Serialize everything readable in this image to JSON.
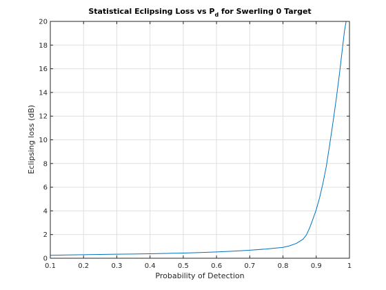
{
  "chart_data": {
    "type": "line",
    "title": "Statistical Eclipsing Loss vs P",
    "title_subscript": "d",
    "title_suffix": " for Swerling 0 Target",
    "xlabel": "Probability of Detection",
    "ylabel": "Eclipsing loss (dB)",
    "xlim": [
      0.1,
      1
    ],
    "ylim": [
      0,
      20
    ],
    "x_ticks": [
      0.1,
      0.2,
      0.3,
      0.4,
      0.5,
      0.6,
      0.7,
      0.8,
      0.9,
      1
    ],
    "x_tick_labels": [
      "0.1",
      "0.2",
      "0.3",
      "0.4",
      "0.5",
      "0.6",
      "0.7",
      "0.8",
      "0.9",
      "1"
    ],
    "y_ticks": [
      0,
      2,
      4,
      6,
      8,
      10,
      12,
      14,
      16,
      18,
      20
    ],
    "y_tick_labels": [
      "0",
      "2",
      "4",
      "6",
      "8",
      "10",
      "12",
      "14",
      "16",
      "18",
      "20"
    ],
    "grid": true,
    "legend": "none",
    "series": [
      {
        "color": "#0072bd",
        "x": [
          0.1,
          0.15,
          0.2,
          0.25,
          0.3,
          0.35,
          0.4,
          0.45,
          0.5,
          0.55,
          0.6,
          0.65,
          0.7,
          0.75,
          0.8,
          0.82,
          0.84,
          0.86,
          0.87,
          0.88,
          0.89,
          0.9,
          0.91,
          0.92,
          0.93,
          0.94,
          0.95,
          0.96,
          0.97,
          0.98,
          0.985,
          0.99
        ],
        "y": [
          0.25,
          0.28,
          0.3,
          0.32,
          0.34,
          0.36,
          0.38,
          0.41,
          0.44,
          0.48,
          0.53,
          0.6,
          0.68,
          0.78,
          0.92,
          1.05,
          1.25,
          1.6,
          1.95,
          2.55,
          3.3,
          4.1,
          5.1,
          6.3,
          7.7,
          9.5,
          11.4,
          13.4,
          15.6,
          18.0,
          19.2,
          20.0
        ]
      }
    ]
  },
  "colors": {
    "axis": "#262626",
    "grid": "#dfdfdf",
    "line": "#0072bd",
    "background": "#ffffff"
  }
}
